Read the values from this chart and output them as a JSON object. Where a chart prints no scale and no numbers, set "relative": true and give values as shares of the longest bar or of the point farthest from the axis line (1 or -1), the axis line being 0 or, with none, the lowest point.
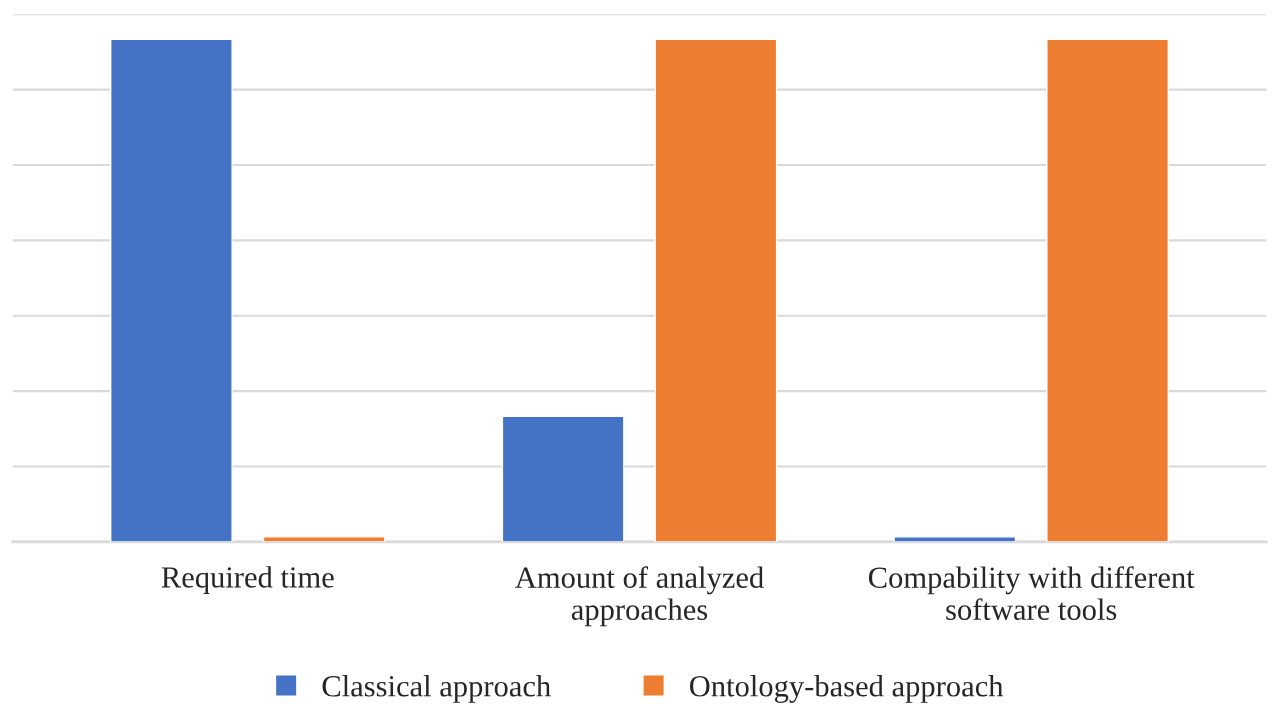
{
  "chart_data": {
    "type": "bar",
    "relative": true,
    "categories": [
      "Required time",
      "Amount of analyzed approaches",
      "Compability with different software tools"
    ],
    "series": [
      {
        "name": "Classical approach",
        "color": "#4472c4",
        "values": [
          1,
          0.25,
          0.01
        ]
      },
      {
        "name": "Ontology-based approach",
        "color": "#ed7d31",
        "values": [
          0.01,
          1,
          1
        ]
      }
    ],
    "grid": "y",
    "legend": "bottom"
  }
}
